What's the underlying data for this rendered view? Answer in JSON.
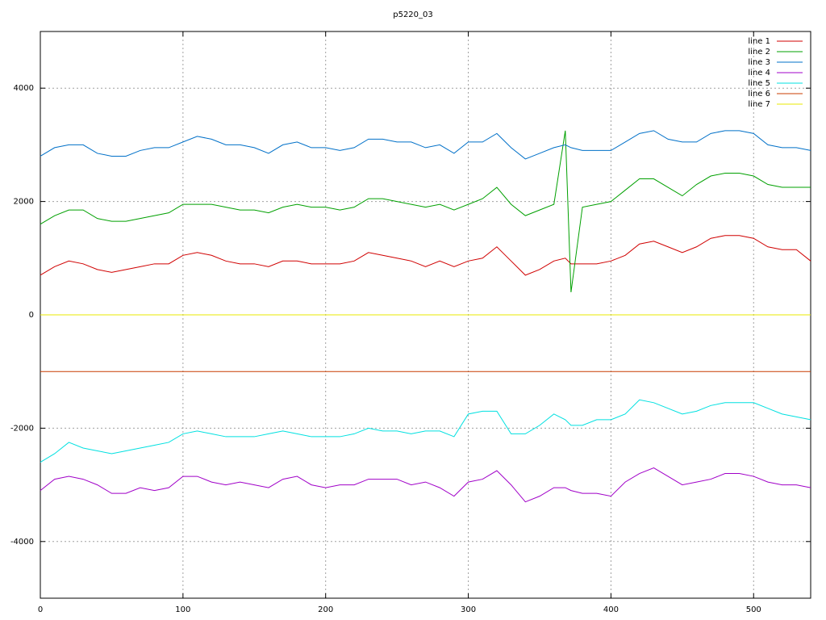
{
  "chart_data": {
    "type": "line",
    "title": "p5220_03",
    "x": [
      0,
      10,
      20,
      30,
      40,
      50,
      60,
      70,
      80,
      90,
      100,
      110,
      120,
      130,
      140,
      150,
      160,
      170,
      180,
      190,
      200,
      210,
      220,
      230,
      240,
      250,
      260,
      270,
      280,
      290,
      300,
      310,
      320,
      330,
      340,
      350,
      360,
      368,
      372,
      380,
      390,
      400,
      410,
      420,
      430,
      440,
      450,
      460,
      470,
      480,
      490,
      500,
      510,
      520,
      530,
      540
    ],
    "series": [
      {
        "name": "line 1",
        "color": "#d00000",
        "values": [
          700,
          850,
          950,
          900,
          800,
          750,
          800,
          850,
          900,
          900,
          1050,
          1100,
          1050,
          950,
          900,
          900,
          850,
          950,
          950,
          900,
          900,
          900,
          950,
          1100,
          1050,
          1000,
          950,
          850,
          950,
          850,
          950,
          1000,
          1200,
          950,
          700,
          800,
          950,
          1000,
          900,
          900,
          900,
          950,
          1050,
          1250,
          1300,
          1200,
          1100,
          1200,
          1350,
          1400,
          1400,
          1350,
          1200,
          1150,
          1150,
          950
        ]
      },
      {
        "name": "line 2",
        "color": "#00a000",
        "values": [
          1600,
          1750,
          1850,
          1850,
          1700,
          1650,
          1650,
          1700,
          1750,
          1800,
          1950,
          1950,
          1950,
          1900,
          1850,
          1850,
          1800,
          1900,
          1950,
          1900,
          1900,
          1850,
          1900,
          2050,
          2050,
          2000,
          1950,
          1900,
          1950,
          1850,
          1950,
          2050,
          2250,
          1950,
          1750,
          1850,
          1950,
          3250,
          400,
          1900,
          1950,
          2000,
          2200,
          2400,
          2400,
          2250,
          2100,
          2300,
          2450,
          2500,
          2500,
          2450,
          2300,
          2250,
          2250,
          2250
        ]
      },
      {
        "name": "line 3",
        "color": "#0070c8",
        "values": [
          2800,
          2950,
          3000,
          3000,
          2850,
          2800,
          2800,
          2900,
          2950,
          2950,
          3050,
          3150,
          3100,
          3000,
          3000,
          2950,
          2850,
          3000,
          3050,
          2950,
          2950,
          2900,
          2950,
          3100,
          3100,
          3050,
          3050,
          2950,
          3000,
          2850,
          3050,
          3050,
          3200,
          2950,
          2750,
          2850,
          2950,
          3000,
          2950,
          2900,
          2900,
          2900,
          3050,
          3200,
          3250,
          3100,
          3050,
          3050,
          3200,
          3250,
          3250,
          3200,
          3000,
          2950,
          2950,
          2900
        ]
      },
      {
        "name": "line 4",
        "color": "#a000c8",
        "values": [
          -3100,
          -2900,
          -2850,
          -2900,
          -3000,
          -3150,
          -3150,
          -3050,
          -3100,
          -3050,
          -2850,
          -2850,
          -2950,
          -3000,
          -2950,
          -3000,
          -3050,
          -2900,
          -2850,
          -3000,
          -3050,
          -3000,
          -3000,
          -2900,
          -2900,
          -2900,
          -3000,
          -2950,
          -3050,
          -3200,
          -2950,
          -2900,
          -2750,
          -3000,
          -3300,
          -3200,
          -3050,
          -3050,
          -3100,
          -3150,
          -3150,
          -3200,
          -2950,
          -2800,
          -2700,
          -2850,
          -3000,
          -2950,
          -2900,
          -2800,
          -2800,
          -2850,
          -2950,
          -3000,
          -3000,
          -3050
        ]
      },
      {
        "name": "line 5",
        "color": "#00e0e0",
        "values": [
          -2600,
          -2450,
          -2250,
          -2350,
          -2400,
          -2450,
          -2400,
          -2350,
          -2300,
          -2250,
          -2100,
          -2050,
          -2100,
          -2150,
          -2150,
          -2150,
          -2100,
          -2050,
          -2100,
          -2150,
          -2150,
          -2150,
          -2100,
          -2000,
          -2050,
          -2050,
          -2100,
          -2050,
          -2050,
          -2150,
          -1750,
          -1700,
          -1700,
          -2100,
          -2100,
          -1950,
          -1750,
          -1850,
          -1950,
          -1950,
          -1850,
          -1850,
          -1750,
          -1500,
          -1550,
          -1650,
          -1750,
          -1700,
          -1600,
          -1550,
          -1550,
          -1550,
          -1650,
          -1750,
          -1800,
          -1850
        ]
      },
      {
        "name": "line 6",
        "color": "#c83c00",
        "values": [
          -1000,
          -1000,
          -1000,
          -1000,
          -1000,
          -1000,
          -1000,
          -1000,
          -1000,
          -1000,
          -1000,
          -1000,
          -1000,
          -1000,
          -1000,
          -1000,
          -1000,
          -1000,
          -1000,
          -1000,
          -1000,
          -1000,
          -1000,
          -1000,
          -1000,
          -1000,
          -1000,
          -1000,
          -1000,
          -1000,
          -1000,
          -1000,
          -1000,
          -1000,
          -1000,
          -1000,
          -1000,
          -1000,
          -1000,
          -1000,
          -1000,
          -1000,
          -1000,
          -1000,
          -1000,
          -1000,
          -1000,
          -1000,
          -1000,
          -1000,
          -1000,
          -1000,
          -1000,
          -1000,
          -1000,
          -1000
        ]
      },
      {
        "name": "line 7",
        "color": "#e8e800",
        "values": [
          0,
          0,
          0,
          0,
          0,
          0,
          0,
          0,
          0,
          0,
          0,
          0,
          0,
          0,
          0,
          0,
          0,
          0,
          0,
          0,
          0,
          0,
          0,
          0,
          0,
          0,
          0,
          0,
          0,
          0,
          0,
          0,
          0,
          0,
          0,
          0,
          0,
          0,
          0,
          0,
          0,
          0,
          0,
          0,
          0,
          0,
          0,
          0,
          0,
          0,
          0,
          0,
          0,
          0,
          0,
          0
        ]
      }
    ],
    "xlim": [
      0,
      540
    ],
    "xticks": [
      0,
      100,
      200,
      300,
      400,
      500
    ],
    "ylim": [
      -5000,
      5000
    ],
    "yticks": [
      -4000,
      -2000,
      0,
      2000,
      4000
    ],
    "grid": true,
    "legend": "top-right"
  }
}
